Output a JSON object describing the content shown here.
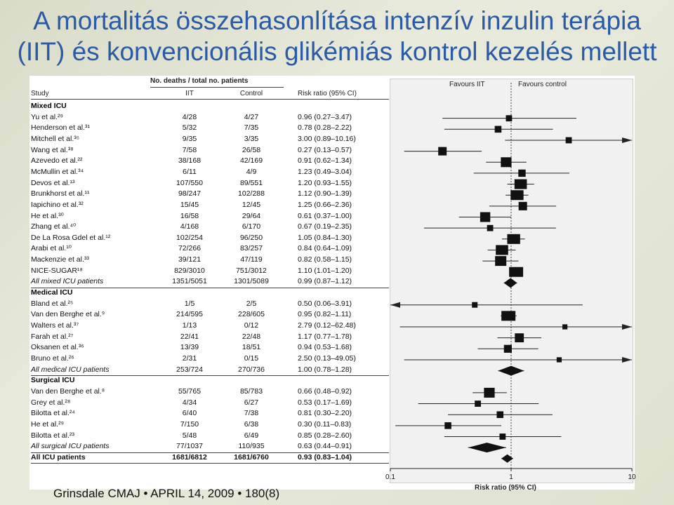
{
  "slide": {
    "title_line1": "A mortalitás összehasonlítása intenzív inzulin terápia",
    "title_line2": "(IIT) és konvencionális glikémiás kontrol kezelés mellett",
    "footer": "Grinsdale CMAJ • APRIL 14, 2009 • 180(8)"
  },
  "table_headers": {
    "deaths": "No. deaths / total no. patients",
    "study": "Study",
    "iit": "IIT",
    "control": "Control",
    "rr": "Risk ratio (95% CI)",
    "favours_iit": "Favours IIT",
    "favours_control": "Favours control",
    "axis_label": "Risk ratio (95% CI)"
  },
  "chart_data": {
    "type": "forest",
    "xscale": "log",
    "xlim": [
      0.1,
      10
    ],
    "xticks": [
      0.1,
      1,
      10
    ],
    "xtick_labels": [
      "0.1",
      "1",
      "10"
    ],
    "rows": [
      {
        "kind": "group",
        "study": "Mixed ICU"
      },
      {
        "kind": "study",
        "study": "Yu et al.²⁹",
        "iit": "4/28",
        "control": "4/27",
        "rr_text": "0.96 (0.27–3.47)",
        "rr": 0.96,
        "lo": 0.27,
        "hi": 3.47,
        "w": 0.3
      },
      {
        "kind": "study",
        "study": "Henderson et al.³¹",
        "iit": "5/32",
        "control": "7/35",
        "rr_text": "0.78 (0.28–2.22)",
        "rr": 0.78,
        "lo": 0.28,
        "hi": 2.22,
        "w": 0.35
      },
      {
        "kind": "study",
        "study": "Mitchell et al.³⁵",
        "iit": "9/35",
        "control": "3/35",
        "rr_text": "3.00 (0.89–10.16)",
        "rr": 3.0,
        "lo": 0.89,
        "hi": 10.16,
        "w": 0.3
      },
      {
        "kind": "study",
        "study": "Wang et al.³⁸",
        "iit": "7/58",
        "control": "26/58",
        "rr_text": "0.27 (0.13–0.57)",
        "rr": 0.27,
        "lo": 0.13,
        "hi": 0.57,
        "w": 0.5
      },
      {
        "kind": "study",
        "study": "Azevedo et al.²²",
        "iit": "38/168",
        "control": "42/169",
        "rr_text": "0.91 (0.62–1.34)",
        "rr": 0.91,
        "lo": 0.62,
        "hi": 1.34,
        "w": 0.7
      },
      {
        "kind": "study",
        "study": "McMullin et al.³⁴",
        "iit": "6/11",
        "control": "4/9",
        "rr_text": "1.23 (0.49–3.04)",
        "rr": 1.23,
        "lo": 0.49,
        "hi": 3.04,
        "w": 0.4
      },
      {
        "kind": "study",
        "study": "Devos et al.¹³",
        "iit": "107/550",
        "control": "89/551",
        "rr_text": "1.20 (0.93–1.55)",
        "rr": 1.2,
        "lo": 0.93,
        "hi": 1.55,
        "w": 0.85
      },
      {
        "kind": "study",
        "study": "Brunkhorst et al.¹¹",
        "iit": "98/247",
        "control": "102/288",
        "rr_text": "1.12 (0.90–1.39)",
        "rr": 1.12,
        "lo": 0.9,
        "hi": 1.39,
        "w": 0.9
      },
      {
        "kind": "study",
        "study": "Iapichino et al.³²",
        "iit": "15/45",
        "control": "12/45",
        "rr_text": "1.25 (0.66–2.36)",
        "rr": 1.25,
        "lo": 0.66,
        "hi": 2.36,
        "w": 0.5
      },
      {
        "kind": "study",
        "study": "He et al.³⁰",
        "iit": "16/58",
        "control": "29/64",
        "rr_text": "0.61 (0.37–1.00)",
        "rr": 0.61,
        "lo": 0.37,
        "hi": 1.0,
        "w": 0.65
      },
      {
        "kind": "study",
        "study": "Zhang et al.⁴⁰",
        "iit": "4/168",
        "control": "6/170",
        "rr_text": "0.67 (0.19–2.35)",
        "rr": 0.67,
        "lo": 0.19,
        "hi": 2.35,
        "w": 0.3
      },
      {
        "kind": "study",
        "study": "De La Rosa Gdel et al.¹²",
        "iit": "102/254",
        "control": "96/250",
        "rr_text": "1.05 (0.84–1.30)",
        "rr": 1.05,
        "lo": 0.84,
        "hi": 1.3,
        "w": 0.9
      },
      {
        "kind": "study",
        "study": "Arabi et al.¹⁰",
        "iit": "72/266",
        "control": "83/257",
        "rr_text": "0.84 (0.64–1.09)",
        "rr": 0.84,
        "lo": 0.64,
        "hi": 1.09,
        "w": 0.85
      },
      {
        "kind": "study",
        "study": "Mackenzie et al.³³",
        "iit": "39/121",
        "control": "47/119",
        "rr_text": "0.82 (0.58–1.15)",
        "rr": 0.82,
        "lo": 0.58,
        "hi": 1.15,
        "w": 0.75
      },
      {
        "kind": "study",
        "study": "NICE-SUGAR¹⁸",
        "iit": "829/3010",
        "control": "751/3012",
        "rr_text": "1.10 (1.01–1.20)",
        "rr": 1.1,
        "lo": 1.01,
        "hi": 1.2,
        "w": 1.0
      },
      {
        "kind": "pooled",
        "study": "All mixed ICU patients",
        "iit": "1351/5051",
        "control": "1301/5089",
        "rr_text": "0.99 (0.87–1.12)",
        "rr": 0.99,
        "lo": 0.87,
        "hi": 1.12
      },
      {
        "kind": "group",
        "study": "Medical ICU"
      },
      {
        "kind": "study",
        "study": "Bland et al.²⁵",
        "iit": "1/5",
        "control": "2/5",
        "rr_text": "0.50 (0.06–3.91)",
        "rr": 0.5,
        "lo": 0.06,
        "hi": 3.91,
        "w": 0.25
      },
      {
        "kind": "study",
        "study": "Van den Berghe et al.⁹",
        "iit": "214/595",
        "control": "228/605",
        "rr_text": "0.95 (0.82–1.11)",
        "rr": 0.95,
        "lo": 0.82,
        "hi": 1.11,
        "w": 1.0
      },
      {
        "kind": "study",
        "study": "Walters et al.³⁷",
        "iit": "1/13",
        "control": "0/12",
        "rr_text": "2.79 (0.12–62.48)",
        "rr": 2.79,
        "lo": 0.12,
        "hi": 62.48,
        "w": 0.2
      },
      {
        "kind": "study",
        "study": "Farah et al.²⁷",
        "iit": "22/41",
        "control": "22/48",
        "rr_text": "1.17 (0.77–1.78)",
        "rr": 1.17,
        "lo": 0.77,
        "hi": 1.78,
        "w": 0.55
      },
      {
        "kind": "study",
        "study": "Oksanen et al.³⁶",
        "iit": "13/39",
        "control": "18/51",
        "rr_text": "0.94 (0.53–1.68)",
        "rr": 0.94,
        "lo": 0.53,
        "hi": 1.68,
        "w": 0.45
      },
      {
        "kind": "study",
        "study": "Bruno et al.²⁶",
        "iit": "2/31",
        "control": "0/15",
        "rr_text": "2.50 (0.13–49.05)",
        "rr": 2.5,
        "lo": 0.13,
        "hi": 49.05,
        "w": 0.2
      },
      {
        "kind": "pooled",
        "study": "All medical ICU patients",
        "iit": "253/724",
        "control": "270/736",
        "rr_text": "1.00 (0.78–1.28)",
        "rr": 1.0,
        "lo": 0.78,
        "hi": 1.28
      },
      {
        "kind": "group",
        "study": "Surgical ICU"
      },
      {
        "kind": "study",
        "study": "Van den Berghe et al.⁸",
        "iit": "55/765",
        "control": "85/783",
        "rr_text": "0.66 (0.48–0.92)",
        "rr": 0.66,
        "lo": 0.48,
        "hi": 0.92,
        "w": 0.7
      },
      {
        "kind": "study",
        "study": "Grey et al.²⁸",
        "iit": "4/34",
        "control": "6/27",
        "rr_text": "0.53 (0.17–1.69)",
        "rr": 0.53,
        "lo": 0.17,
        "hi": 1.69,
        "w": 0.3
      },
      {
        "kind": "study",
        "study": "Bilotta et al.²⁴",
        "iit": "6/40",
        "control": "7/38",
        "rr_text": "0.81 (0.30–2.20)",
        "rr": 0.81,
        "lo": 0.3,
        "hi": 2.2,
        "w": 0.35
      },
      {
        "kind": "study",
        "study": "He et al.²⁹",
        "iit": "7/150",
        "control": "6/38",
        "rr_text": "0.30 (0.11–0.83)",
        "rr": 0.3,
        "lo": 0.11,
        "hi": 0.83,
        "w": 0.35
      },
      {
        "kind": "study",
        "study": "Bilotta et al.²³",
        "iit": "5/48",
        "control": "6/49",
        "rr_text": "0.85 (0.28–2.60)",
        "rr": 0.85,
        "lo": 0.28,
        "hi": 2.6,
        "w": 0.3
      },
      {
        "kind": "pooled",
        "study": "All surgical ICU patients",
        "iit": "77/1037",
        "control": "110/935",
        "rr_text": "0.63 (0.44–0.91)",
        "rr": 0.63,
        "lo": 0.44,
        "hi": 0.91
      },
      {
        "kind": "total",
        "study": "All ICU patients",
        "iit": "1681/6812",
        "control": "1681/6760",
        "rr_text": "0.93 (0.83–1.04)",
        "rr": 0.93,
        "lo": 0.83,
        "hi": 1.04
      }
    ]
  }
}
